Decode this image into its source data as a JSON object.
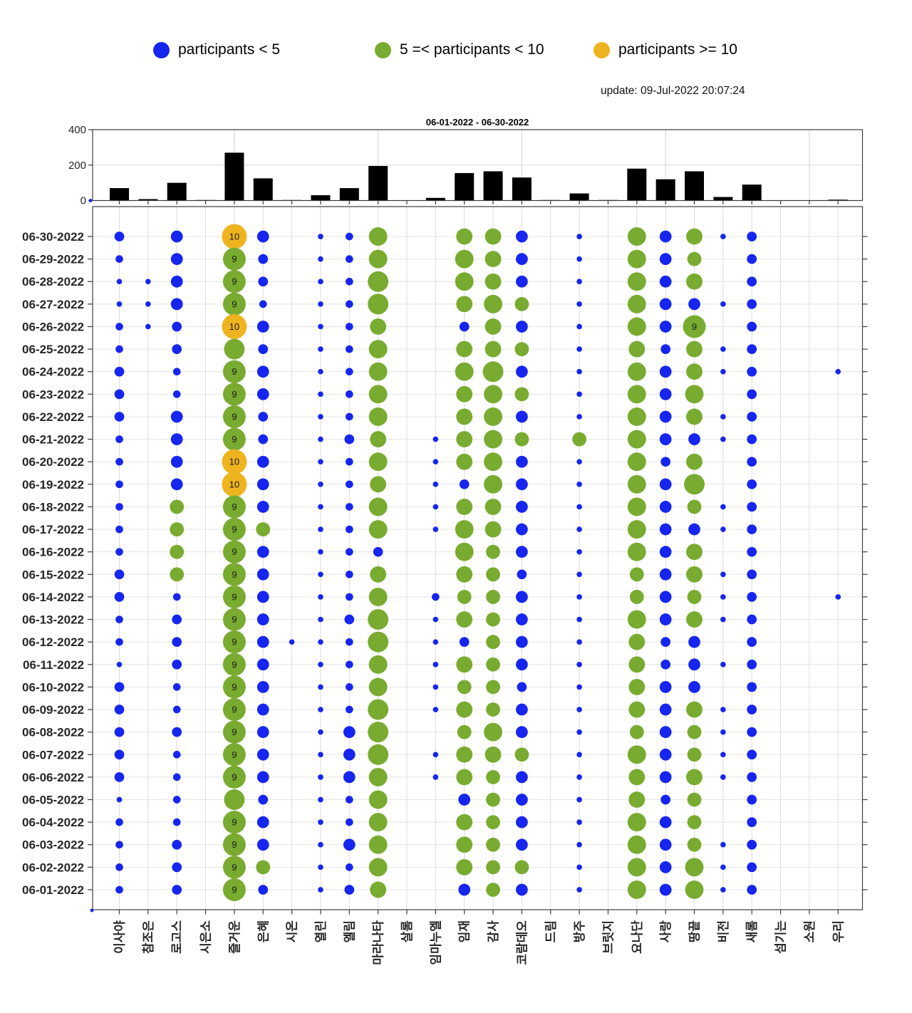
{
  "legend": {
    "items": [
      {
        "label": "participants < 5",
        "color": "#1626ee"
      },
      {
        "label": "5 =< participants < 10",
        "color": "#78ab2f"
      },
      {
        "label": "participants >= 10",
        "color": "#eeb41f"
      }
    ]
  },
  "header": {
    "update_text": "update: 09-Jul-2022 20:07:24"
  },
  "colors": {
    "blue": "#1626ee",
    "green": "#78ab2f",
    "orange": "#eeb41f",
    "bar": "#000000",
    "grid_light": "#dcdcdc",
    "spine": "#3c3c3c",
    "origin_marker": "#1626ee"
  },
  "chart_data": [
    {
      "type": "bar",
      "title": "06-01-2022  - 06-30-2022",
      "categories": [
        "이사야",
        "참조은",
        "로고스",
        "시은소",
        "즐거운",
        "은혜",
        "시온",
        "열린",
        "엘림",
        "마라나타",
        "살롬",
        "임마누엘",
        "임재",
        "감사",
        "코람데오",
        "드림",
        "방주",
        "브릿지",
        "요나단",
        "사랑",
        "땅끝",
        "비전",
        "새롬",
        "섬기는",
        "소원",
        "우리"
      ],
      "values": [
        70,
        8,
        100,
        3,
        270,
        125,
        3,
        30,
        70,
        195,
        2,
        15,
        155,
        165,
        130,
        3,
        40,
        3,
        180,
        120,
        165,
        20,
        90,
        2,
        2,
        5
      ],
      "xlabel": "",
      "ylabel": "",
      "ylim": [
        0,
        400
      ],
      "yticks": [
        "0",
        "200",
        "400"
      ],
      "grid": true,
      "legend_position": "none"
    },
    {
      "type": "bubble-matrix",
      "x_categories": [
        "이사야",
        "참조은",
        "로고스",
        "시은소",
        "즐거운",
        "은혜",
        "시온",
        "열린",
        "엘림",
        "마라나타",
        "살롬",
        "임마누엘",
        "임재",
        "감사",
        "코람데오",
        "드림",
        "방주",
        "브릿지",
        "요나단",
        "사랑",
        "땅끝",
        "비전",
        "새롬",
        "섬기는",
        "소원",
        "우리"
      ],
      "y_categories": [
        "06-30-2022",
        "06-29-2022",
        "06-28-2022",
        "06-27-2022",
        "06-26-2022",
        "06-25-2022",
        "06-24-2022",
        "06-23-2022",
        "06-22-2022",
        "06-21-2022",
        "06-20-2022",
        "06-19-2022",
        "06-18-2022",
        "06-17-2022",
        "06-16-2022",
        "06-15-2022",
        "06-14-2022",
        "06-13-2022",
        "06-12-2022",
        "06-11-2022",
        "06-10-2022",
        "06-09-2022",
        "06-08-2022",
        "06-07-2022",
        "06-06-2022",
        "06-05-2022",
        "06-04-2022",
        "06-03-2022",
        "06-02-2022",
        "06-01-2022"
      ],
      "value_rule": "participants per group per day; 0 = no bubble; <5 blue, 5-9 green, >=10 orange; numeric label drawn when value >= 9",
      "matrix": [
        [
          3,
          0,
          4,
          0,
          10,
          4,
          0,
          1,
          2,
          7,
          0,
          0,
          6,
          6,
          4,
          0,
          1,
          0,
          7,
          4,
          6,
          1,
          3,
          0,
          0,
          0
        ],
        [
          2,
          0,
          4,
          0,
          9,
          3,
          0,
          1,
          2,
          7,
          0,
          0,
          7,
          6,
          4,
          0,
          1,
          0,
          7,
          4,
          5,
          0,
          3,
          0,
          0,
          0
        ],
        [
          1,
          1,
          4,
          0,
          9,
          3,
          0,
          1,
          2,
          8,
          0,
          0,
          7,
          6,
          4,
          0,
          1,
          0,
          7,
          4,
          6,
          0,
          3,
          0,
          0,
          0
        ],
        [
          1,
          1,
          4,
          0,
          9,
          2,
          0,
          1,
          2,
          8,
          0,
          0,
          6,
          7,
          5,
          0,
          1,
          0,
          7,
          4,
          4,
          1,
          3,
          0,
          0,
          0
        ],
        [
          2,
          1,
          3,
          0,
          10,
          4,
          0,
          1,
          2,
          6,
          0,
          0,
          3,
          6,
          4,
          0,
          1,
          0,
          7,
          4,
          9,
          0,
          3,
          0,
          0,
          0
        ],
        [
          2,
          0,
          3,
          0,
          8,
          3,
          0,
          1,
          2,
          7,
          0,
          0,
          6,
          6,
          5,
          0,
          1,
          0,
          6,
          3,
          6,
          1,
          3,
          0,
          0,
          0
        ],
        [
          3,
          0,
          2,
          0,
          9,
          4,
          0,
          1,
          2,
          7,
          0,
          0,
          7,
          8,
          4,
          0,
          1,
          0,
          7,
          4,
          6,
          1,
          3,
          0,
          0,
          1
        ],
        [
          3,
          0,
          2,
          0,
          9,
          4,
          0,
          1,
          2,
          7,
          0,
          0,
          6,
          7,
          5,
          0,
          1,
          0,
          7,
          4,
          7,
          0,
          3,
          0,
          0,
          0
        ],
        [
          3,
          0,
          4,
          0,
          9,
          3,
          0,
          1,
          2,
          7,
          0,
          0,
          6,
          7,
          4,
          0,
          1,
          0,
          7,
          4,
          6,
          1,
          3,
          0,
          0,
          0
        ],
        [
          2,
          0,
          4,
          0,
          9,
          3,
          0,
          1,
          3,
          6,
          0,
          1,
          6,
          7,
          5,
          0,
          5,
          0,
          7,
          4,
          4,
          1,
          3,
          0,
          0,
          0
        ],
        [
          2,
          0,
          4,
          0,
          10,
          4,
          0,
          1,
          2,
          7,
          0,
          1,
          6,
          7,
          4,
          0,
          1,
          0,
          7,
          3,
          6,
          0,
          3,
          0,
          0,
          0
        ],
        [
          2,
          0,
          4,
          0,
          10,
          4,
          0,
          1,
          2,
          6,
          0,
          1,
          3,
          7,
          4,
          0,
          1,
          0,
          7,
          4,
          8,
          0,
          3,
          0,
          0,
          0
        ],
        [
          2,
          0,
          5,
          0,
          9,
          4,
          0,
          1,
          2,
          7,
          0,
          1,
          6,
          6,
          4,
          0,
          1,
          0,
          7,
          4,
          5,
          1,
          3,
          0,
          0,
          0
        ],
        [
          2,
          0,
          5,
          0,
          9,
          5,
          0,
          1,
          2,
          7,
          0,
          1,
          7,
          6,
          4,
          0,
          1,
          0,
          7,
          4,
          4,
          1,
          3,
          0,
          0,
          0
        ],
        [
          2,
          0,
          5,
          0,
          9,
          4,
          0,
          1,
          2,
          3,
          0,
          0,
          7,
          5,
          4,
          0,
          1,
          0,
          7,
          4,
          6,
          0,
          3,
          0,
          0,
          0
        ],
        [
          3,
          0,
          5,
          0,
          9,
          4,
          0,
          1,
          2,
          6,
          0,
          0,
          6,
          5,
          3,
          0,
          1,
          0,
          5,
          4,
          6,
          1,
          3,
          0,
          0,
          0
        ],
        [
          3,
          0,
          2,
          0,
          9,
          4,
          0,
          1,
          2,
          7,
          0,
          2,
          5,
          5,
          4,
          0,
          1,
          0,
          5,
          4,
          5,
          1,
          3,
          0,
          0,
          1
        ],
        [
          2,
          0,
          3,
          0,
          9,
          4,
          0,
          1,
          3,
          8,
          0,
          1,
          6,
          5,
          4,
          0,
          1,
          0,
          7,
          4,
          6,
          1,
          3,
          0,
          0,
          0
        ],
        [
          2,
          0,
          3,
          0,
          9,
          4,
          1,
          1,
          2,
          8,
          0,
          1,
          3,
          5,
          4,
          0,
          1,
          0,
          6,
          3,
          4,
          0,
          3,
          0,
          0,
          0
        ],
        [
          1,
          0,
          3,
          0,
          9,
          4,
          0,
          1,
          2,
          7,
          0,
          1,
          6,
          5,
          4,
          0,
          1,
          0,
          6,
          3,
          4,
          1,
          3,
          0,
          0,
          0
        ],
        [
          3,
          0,
          2,
          0,
          9,
          4,
          0,
          1,
          2,
          7,
          0,
          1,
          5,
          5,
          3,
          0,
          1,
          0,
          6,
          4,
          4,
          0,
          3,
          0,
          0,
          0
        ],
        [
          3,
          0,
          2,
          0,
          9,
          4,
          0,
          1,
          2,
          8,
          0,
          1,
          6,
          5,
          4,
          0,
          1,
          0,
          6,
          4,
          6,
          1,
          3,
          0,
          0,
          0
        ],
        [
          3,
          0,
          3,
          0,
          9,
          4,
          0,
          1,
          4,
          8,
          0,
          0,
          5,
          7,
          4,
          0,
          1,
          0,
          5,
          4,
          5,
          1,
          3,
          0,
          0,
          0
        ],
        [
          3,
          0,
          2,
          0,
          9,
          4,
          0,
          1,
          4,
          8,
          0,
          1,
          6,
          6,
          5,
          0,
          1,
          0,
          7,
          4,
          5,
          1,
          3,
          0,
          0,
          0
        ],
        [
          3,
          0,
          2,
          0,
          9,
          4,
          0,
          1,
          4,
          7,
          0,
          1,
          6,
          5,
          4,
          0,
          1,
          0,
          6,
          4,
          6,
          1,
          3,
          0,
          0,
          0
        ],
        [
          1,
          0,
          2,
          0,
          8,
          3,
          0,
          1,
          2,
          7,
          0,
          0,
          4,
          5,
          4,
          0,
          1,
          0,
          6,
          3,
          5,
          0,
          3,
          0,
          0,
          0
        ],
        [
          2,
          0,
          2,
          0,
          9,
          4,
          0,
          1,
          2,
          7,
          0,
          0,
          6,
          5,
          4,
          0,
          1,
          0,
          7,
          4,
          5,
          0,
          3,
          0,
          0,
          0
        ],
        [
          2,
          0,
          3,
          0,
          9,
          4,
          0,
          1,
          4,
          7,
          0,
          0,
          6,
          5,
          4,
          0,
          1,
          0,
          7,
          4,
          5,
          1,
          3,
          0,
          0,
          0
        ],
        [
          2,
          0,
          3,
          0,
          9,
          5,
          0,
          1,
          2,
          7,
          0,
          0,
          6,
          5,
          5,
          0,
          1,
          0,
          7,
          4,
          7,
          1,
          3,
          0,
          0,
          0
        ],
        [
          2,
          0,
          3,
          0,
          9,
          3,
          0,
          1,
          3,
          6,
          0,
          0,
          4,
          5,
          4,
          0,
          1,
          0,
          7,
          4,
          7,
          1,
          3,
          0,
          0,
          0
        ]
      ],
      "labeled_bubbles_note": "orange 10s: 06-30/06-26/06-20/06-19 즐거운; green 9s: all other 즐거운 rows except 06-25 and 06-05; plus 땅끝 on 06-26"
    }
  ]
}
